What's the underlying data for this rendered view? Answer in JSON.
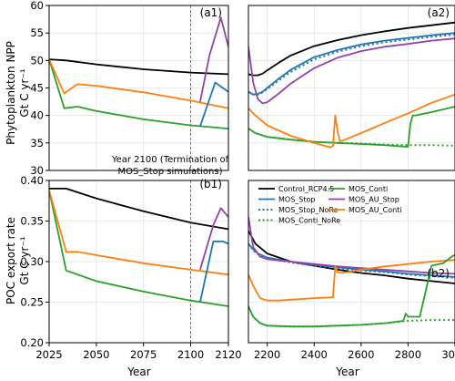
{
  "colors": {
    "Control_RCP4.5": "#000000",
    "MOS_Stop": "#1f77b4",
    "MOS_Stop_NoRe": "#1f77b4",
    "MOS_Conti": "#2ca02c",
    "MOS_Conti_NoRe": "#2ca02c",
    "MOS_AU_Stop": "#9442a8",
    "MOS_AU_Conti": "#ff7f0e",
    "termination_line": "#e8454b"
  },
  "chart_data": [
    {
      "id": "a1",
      "type": "line",
      "panel_label": "(a1)",
      "ylabel": [
        "Phytoplankton NPP",
        "Gt C yr⁻¹"
      ],
      "xlabel": "",
      "xlim": [
        2025,
        2120
      ],
      "ylim": [
        30,
        60
      ],
      "xticks": [],
      "yticks": [
        30,
        35,
        40,
        45,
        50,
        55,
        60
      ],
      "grid": true,
      "vline": 2100,
      "annotation": [
        "Year 2100 (Termination of",
        "MOS_Stop simulations)"
      ],
      "series": [
        {
          "name": "Control_RCP4.5",
          "dash": false,
          "x": [
            2025,
            2034,
            2050,
            2075,
            2100,
            2120
          ],
          "y": [
            50.2,
            50.0,
            49.3,
            48.4,
            47.8,
            47.5
          ]
        },
        {
          "name": "MOS_Conti",
          "dash": false,
          "x": [
            2025,
            2033,
            2040,
            2050,
            2075,
            2100,
            2120
          ],
          "y": [
            50.2,
            41.3,
            41.6,
            40.8,
            39.3,
            38.2,
            37.6
          ]
        },
        {
          "name": "MOS_AU_Conti",
          "dash": false,
          "x": [
            2025,
            2033,
            2040,
            2050,
            2075,
            2100,
            2120
          ],
          "y": [
            50.2,
            44.0,
            45.7,
            45.4,
            44.2,
            42.7,
            41.3
          ]
        },
        {
          "name": "MOS_Stop",
          "dash": false,
          "x": [
            2105,
            2113,
            2117,
            2120
          ],
          "y": [
            38.0,
            46.0,
            45.0,
            44.3
          ]
        },
        {
          "name": "MOS_AU_Stop",
          "dash": false,
          "x": [
            2105,
            2110,
            2116,
            2120
          ],
          "y": [
            42.5,
            51.0,
            57.8,
            52.5
          ]
        }
      ]
    },
    {
      "id": "a2",
      "type": "line",
      "panel_label": "(a2)",
      "xlim": [
        2120,
        3000
      ],
      "ylim": [
        30,
        60
      ],
      "xticks": [],
      "grid": true,
      "series": [
        {
          "name": "Control_RCP4.5",
          "dash": false,
          "x": [
            2120,
            2140,
            2160,
            2180,
            2200,
            2250,
            2300,
            2400,
            2500,
            2600,
            2700,
            2800,
            2900,
            3000
          ],
          "y": [
            47.5,
            47.3,
            47.3,
            47.6,
            48.2,
            49.6,
            50.9,
            52.6,
            53.7,
            54.6,
            55.3,
            55.9,
            56.4,
            56.9
          ]
        },
        {
          "name": "MOS_Stop",
          "dash": false,
          "x": [
            2120,
            2140,
            2160,
            2180,
            2200,
            2250,
            2300,
            2400,
            2500,
            2600,
            2700,
            2800,
            2900,
            3000
          ],
          "y": [
            44.3,
            43.8,
            43.9,
            44.3,
            45.0,
            46.7,
            48.3,
            50.6,
            51.9,
            52.9,
            53.6,
            54.1,
            54.6,
            55.0
          ]
        },
        {
          "name": "MOS_Stop_NoRe",
          "dash": true,
          "x": [
            2120,
            2140,
            2160,
            2180,
            2200,
            2250,
            2300,
            2400,
            2500,
            2600,
            2700,
            2800,
            2900,
            3000
          ],
          "y": [
            44.3,
            43.8,
            43.8,
            44.2,
            44.8,
            46.4,
            47.9,
            50.2,
            51.6,
            52.6,
            53.3,
            53.8,
            54.3,
            54.7
          ]
        },
        {
          "name": "MOS_AU_Stop",
          "dash": false,
          "x": [
            2120,
            2140,
            2160,
            2180,
            2200,
            2250,
            2300,
            2400,
            2500,
            2600,
            2700,
            2800,
            2900,
            3000
          ],
          "y": [
            52.5,
            46.0,
            43.0,
            42.2,
            42.4,
            44.0,
            45.8,
            48.6,
            50.5,
            51.7,
            52.5,
            53.0,
            53.6,
            54.0
          ]
        },
        {
          "name": "MOS_Conti",
          "dash": false,
          "x": [
            2120,
            2150,
            2200,
            2300,
            2400,
            2500,
            2600,
            2700,
            2800,
            2810,
            2820,
            2830,
            2900,
            3000
          ],
          "y": [
            37.6,
            36.8,
            36.1,
            35.6,
            35.2,
            35.0,
            34.8,
            34.6,
            34.3,
            38.5,
            40.0,
            40.0,
            40.6,
            41.6
          ]
        },
        {
          "name": "MOS_Conti_NoRe",
          "dash": true,
          "x": [
            2120,
            2150,
            2200,
            2300,
            2400,
            2500,
            2600,
            2700,
            2800,
            2900,
            3000
          ],
          "y": [
            37.6,
            36.8,
            36.1,
            35.6,
            35.2,
            35.0,
            34.9,
            34.7,
            34.6,
            34.6,
            34.5
          ]
        },
        {
          "name": "MOS_AU_Conti",
          "dash": false,
          "x": [
            2120,
            2150,
            2200,
            2300,
            2400,
            2470,
            2480,
            2490,
            2500,
            2510,
            2520,
            2600,
            2700,
            2800,
            2900,
            3000
          ],
          "y": [
            41.3,
            40.0,
            38.2,
            36.3,
            35.0,
            34.2,
            34.5,
            40.0,
            37.0,
            35.3,
            35.4,
            36.8,
            38.6,
            40.4,
            42.3,
            43.8
          ]
        }
      ]
    },
    {
      "id": "b1",
      "type": "line",
      "panel_label": "(b1)",
      "ylabel": [
        "POC export rate",
        "Gt C yr⁻¹"
      ],
      "xlabel": "Year",
      "xlim": [
        2025,
        2120
      ],
      "ylim": [
        0.2,
        0.4
      ],
      "xticks": [
        2025,
        2050,
        2075,
        2100,
        2120
      ],
      "yticks": [
        0.2,
        0.25,
        0.3,
        0.35,
        0.4
      ],
      "ytick_labels": [
        "0.20",
        "0.25",
        "0.30",
        "0.35",
        "0.40"
      ],
      "grid": true,
      "vline": 2100,
      "series": [
        {
          "name": "Control_RCP4.5",
          "dash": false,
          "x": [
            2025,
            2034,
            2050,
            2075,
            2100,
            2120
          ],
          "y": [
            0.39,
            0.39,
            0.378,
            0.362,
            0.348,
            0.34
          ]
        },
        {
          "name": "MOS_Conti",
          "dash": false,
          "x": [
            2025,
            2034,
            2050,
            2075,
            2100,
            2120
          ],
          "y": [
            0.388,
            0.289,
            0.276,
            0.263,
            0.252,
            0.245
          ]
        },
        {
          "name": "MOS_AU_Conti",
          "dash": false,
          "x": [
            2025,
            2034,
            2040,
            2050,
            2075,
            2100,
            2120
          ],
          "y": [
            0.388,
            0.312,
            0.312,
            0.308,
            0.298,
            0.29,
            0.284
          ]
        },
        {
          "name": "MOS_Stop",
          "dash": false,
          "x": [
            2105,
            2112,
            2117,
            2120
          ],
          "y": [
            0.25,
            0.325,
            0.325,
            0.322
          ]
        },
        {
          "name": "MOS_AU_Stop",
          "dash": false,
          "x": [
            2105,
            2112,
            2116,
            2120
          ],
          "y": [
            0.29,
            0.345,
            0.366,
            0.355
          ]
        }
      ]
    },
    {
      "id": "b2",
      "type": "line",
      "panel_label": "(b2)",
      "xlabel": "Year",
      "xlim": [
        2120,
        3000
      ],
      "ylim": [
        0.2,
        0.4
      ],
      "xticks": [
        2200,
        2400,
        2600,
        2800,
        3000
      ],
      "grid": true,
      "series": [
        {
          "name": "Control_RCP4.5",
          "dash": false,
          "x": [
            2120,
            2150,
            2200,
            2300,
            2400,
            2500,
            2600,
            2700,
            2800,
            2900,
            3000
          ],
          "y": [
            0.338,
            0.322,
            0.31,
            0.3,
            0.295,
            0.29,
            0.286,
            0.283,
            0.279,
            0.276,
            0.273
          ]
        },
        {
          "name": "MOS_Stop",
          "dash": false,
          "x": [
            2120,
            2140,
            2160,
            2200,
            2300,
            2400,
            2500,
            2600,
            2700,
            2800,
            2900,
            3000
          ],
          "y": [
            0.322,
            0.315,
            0.31,
            0.305,
            0.3,
            0.296,
            0.293,
            0.29,
            0.288,
            0.285,
            0.283,
            0.281
          ]
        },
        {
          "name": "MOS_Stop_NoRe",
          "dash": true,
          "x": [
            2120,
            2140,
            2160,
            2200,
            2300,
            2400,
            2500,
            2600,
            2700,
            2800,
            2900,
            3000
          ],
          "y": [
            0.322,
            0.314,
            0.309,
            0.304,
            0.299,
            0.295,
            0.292,
            0.289,
            0.287,
            0.284,
            0.282,
            0.28
          ]
        },
        {
          "name": "MOS_AU_Stop",
          "dash": false,
          "x": [
            2120,
            2140,
            2170,
            2200,
            2300,
            2400,
            2500,
            2600,
            2700,
            2800,
            2900,
            3000
          ],
          "y": [
            0.355,
            0.318,
            0.306,
            0.303,
            0.3,
            0.297,
            0.294,
            0.292,
            0.29,
            0.288,
            0.286,
            0.285
          ]
        },
        {
          "name": "MOS_AU_Conti",
          "dash": false,
          "x": [
            2120,
            2140,
            2170,
            2200,
            2250,
            2300,
            2400,
            2480,
            2490,
            2500,
            2520,
            2560,
            2600,
            2700,
            2800,
            2900,
            3000
          ],
          "y": [
            0.284,
            0.27,
            0.255,
            0.252,
            0.252,
            0.253,
            0.255,
            0.256,
            0.294,
            0.287,
            0.286,
            0.288,
            0.29,
            0.294,
            0.297,
            0.3,
            0.302
          ]
        },
        {
          "name": "MOS_Conti",
          "dash": false,
          "x": [
            2120,
            2140,
            2170,
            2200,
            2300,
            2400,
            2500,
            2600,
            2700,
            2780,
            2790,
            2800,
            2850,
            2900,
            2950,
            2990,
            3000
          ],
          "y": [
            0.245,
            0.232,
            0.224,
            0.221,
            0.22,
            0.22,
            0.221,
            0.222,
            0.224,
            0.227,
            0.236,
            0.232,
            0.232,
            0.295,
            0.298,
            0.307,
            0.308
          ]
        },
        {
          "name": "MOS_Conti_NoRe",
          "dash": true,
          "x": [
            2120,
            2140,
            2170,
            2200,
            2300,
            2400,
            2500,
            2600,
            2700,
            2800,
            2900,
            3000
          ],
          "y": [
            0.245,
            0.232,
            0.224,
            0.221,
            0.22,
            0.22,
            0.221,
            0.222,
            0.224,
            0.227,
            0.228,
            0.228
          ]
        }
      ],
      "legend": {
        "placement": "upper-center",
        "columns": [
          [
            "Control_RCP4.5",
            "MOS_Stop",
            "MOS_Stop_NoRe",
            "MOS_Conti_NoRe"
          ],
          [
            "MOS_Conti",
            "MOS_AU_Stop",
            "MOS_AU_Conti"
          ]
        ]
      }
    }
  ]
}
